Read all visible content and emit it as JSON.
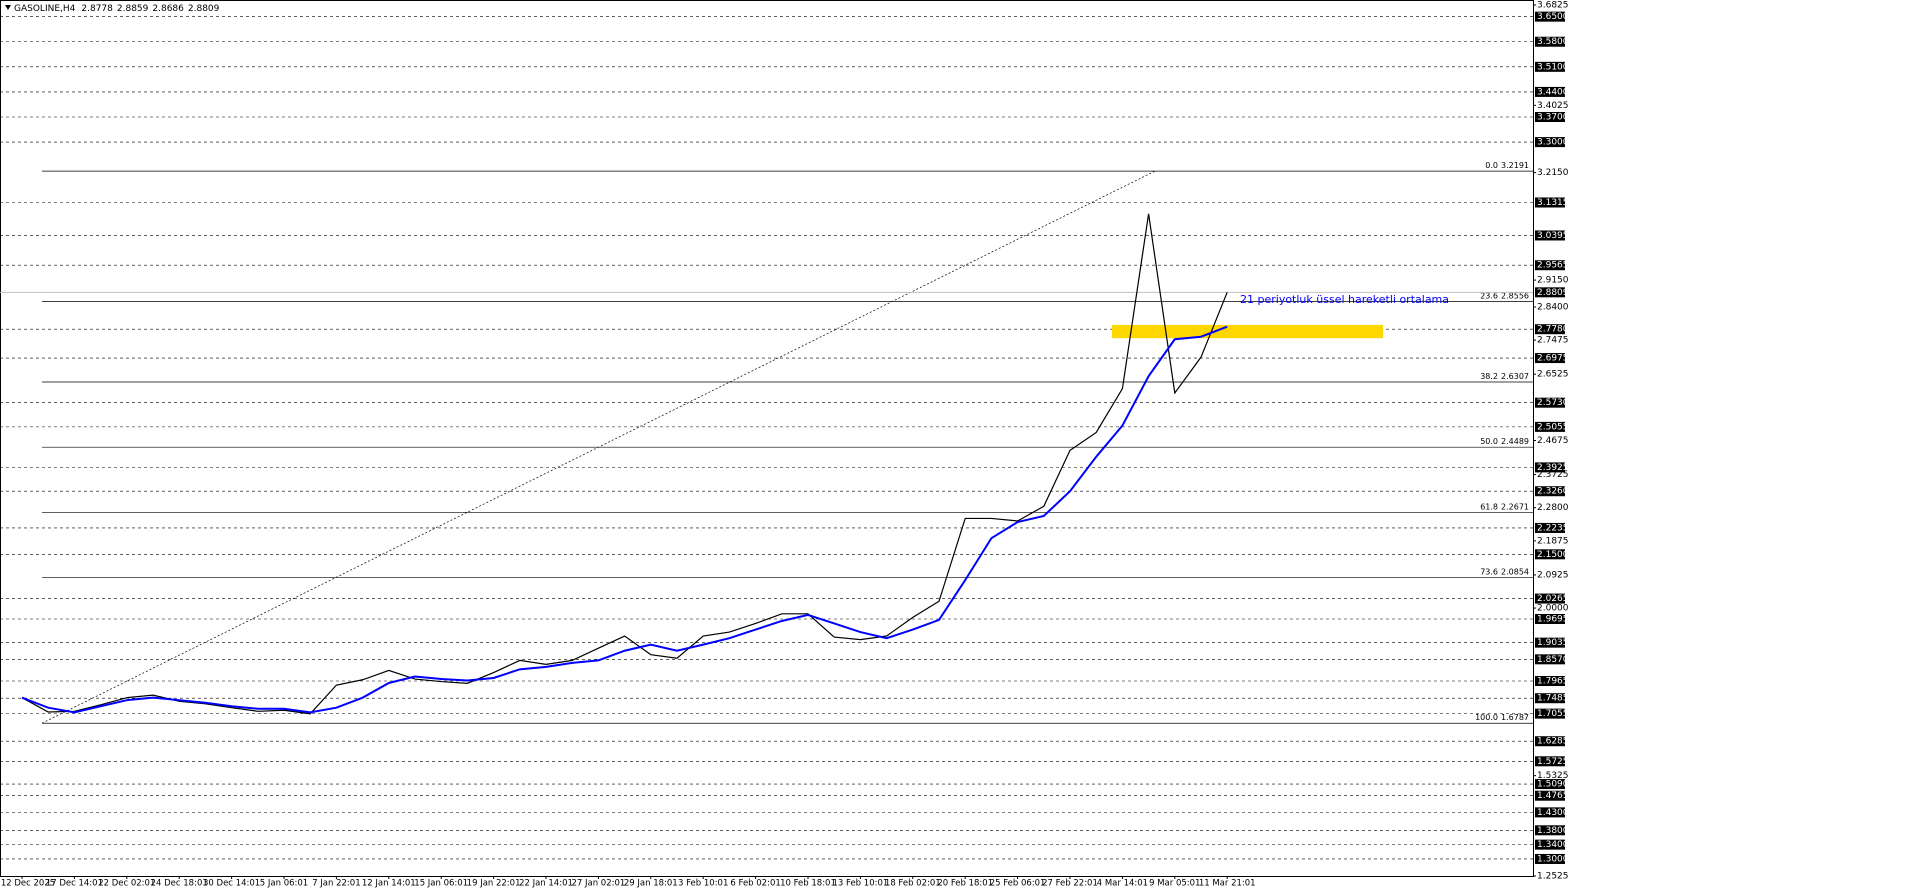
{
  "chart_data": {
    "type": "line",
    "header": {
      "symbol": "GASOLINE,H4",
      "open": 2.8778,
      "high": 2.8859,
      "low": 2.8686,
      "close": 2.8809
    },
    "categories": [
      "12 Dec 2025",
      null,
      "17 Dec 14:01",
      null,
      "22 Dec 02:01",
      null,
      "24 Dec 18:01",
      null,
      "30 Dec 14:01",
      null,
      "5 Jan 06:01",
      null,
      "7 Jan 22:01",
      null,
      "12 Jan 14:01",
      null,
      "15 Jan 06:01",
      null,
      "19 Jan 22:01",
      null,
      "22 Jan 14:01",
      null,
      "27 Jan 02:01",
      null,
      "29 Jan 18:01",
      null,
      "3 Feb 10:01",
      null,
      "6 Feb 02:01",
      null,
      "10 Feb 18:01",
      null,
      "13 Feb 10:01",
      null,
      "18 Feb 02:01",
      null,
      "20 Feb 18:01",
      null,
      "25 Feb 06:01",
      null,
      "27 Feb 22:01",
      null,
      "4 Mar 14:01",
      null,
      "9 Mar 05:01",
      null,
      "11 Mar 21:01"
    ],
    "series": [
      {
        "color": "#000000",
        "values": [
          1.75,
          1.71,
          1.712,
          1.73,
          1.75,
          1.757,
          1.74,
          1.733,
          1.722,
          1.712,
          1.715,
          1.705,
          1.785,
          1.8,
          1.826,
          1.802,
          1.795,
          1.79,
          1.82,
          1.854,
          1.843,
          1.854,
          1.888,
          1.922,
          1.87,
          1.86,
          1.922,
          1.933,
          1.957,
          1.984,
          1.984,
          1.919,
          1.912,
          1.922,
          1.974,
          2.019,
          2.25,
          2.25,
          2.243,
          2.284,
          2.44,
          2.49,
          2.612,
          3.1,
          2.6,
          2.7,
          2.8809
        ]
      },
      {
        "color": "#0000ff",
        "values": [
          1.75,
          1.722,
          1.709,
          1.726,
          1.743,
          1.75,
          1.743,
          1.736,
          1.726,
          1.719,
          1.719,
          1.709,
          1.722,
          1.75,
          1.791,
          1.809,
          1.802,
          1.798,
          1.805,
          1.829,
          1.836,
          1.847,
          1.854,
          1.881,
          1.898,
          1.881,
          1.898,
          1.916,
          1.94,
          1.964,
          1.981,
          1.957,
          1.933,
          1.916,
          1.94,
          1.967,
          2.078,
          2.195,
          2.24,
          2.257,
          2.326,
          2.422,
          2.509,
          2.647,
          2.75,
          2.757,
          2.785
        ]
      }
    ],
    "annotation": "21 periyotluk üssel hareketli ortalama",
    "ylim": [
      1.2525,
      3.6825
    ],
    "yticks": [
      {
        "value": 3.6825,
        "label": "3.6825"
      },
      {
        "value": 3.4025,
        "label": "3.4025"
      },
      {
        "value": 3.215,
        "label": "3.2150"
      },
      {
        "value": 2.915,
        "label": "2.9150"
      },
      {
        "value": 2.84,
        "label": "2.8400"
      },
      {
        "value": 2.7475,
        "label": "2.7475"
      },
      {
        "value": 2.6525,
        "label": "2.6525"
      },
      {
        "value": 2.4675,
        "label": "2.4675"
      },
      {
        "value": 2.3725,
        "label": "2.3725"
      },
      {
        "value": 2.28,
        "label": "2.2800"
      },
      {
        "value": 2.1875,
        "label": "2.1875"
      },
      {
        "value": 2.0925,
        "label": "2.0925"
      },
      {
        "value": 2,
        "label": "2.0000"
      },
      {
        "value": 1.5325,
        "label": "1.5325"
      },
      {
        "value": 1.2525,
        "label": "1.2525"
      }
    ],
    "levels": [
      {
        "value": 3.65,
        "label": "3.6500"
      },
      {
        "value": 3.58,
        "label": "3.5800"
      },
      {
        "value": 3.51,
        "label": "3.5100"
      },
      {
        "value": 3.44,
        "label": "3.4400"
      },
      {
        "value": 3.37,
        "label": "3.3700"
      },
      {
        "value": 3.3,
        "label": "3.3000"
      },
      {
        "value": 3.1315,
        "label": "3.1315"
      },
      {
        "value": 3.0395,
        "label": "3.0395"
      },
      {
        "value": 2.9565,
        "label": "2.9565"
      },
      {
        "value": 2.778,
        "label": "2.7780"
      },
      {
        "value": 2.6975,
        "label": "2.6975"
      },
      {
        "value": 2.573,
        "label": "2.5730"
      },
      {
        "value": 2.5055,
        "label": "2.5055"
      },
      {
        "value": 2.3925,
        "label": "2.3925"
      },
      {
        "value": 2.326,
        "label": "2.3260"
      },
      {
        "value": 2.2235,
        "label": "2.2235"
      },
      {
        "value": 2.15,
        "label": "2.1500"
      },
      {
        "value": 2.0265,
        "label": "2.0265"
      },
      {
        "value": 1.9695,
        "label": "1.9695"
      },
      {
        "value": 1.9035,
        "label": "1.9035"
      },
      {
        "value": 1.857,
        "label": "1.8570"
      },
      {
        "value": 1.7965,
        "label": "1.7965"
      },
      {
        "value": 1.7485,
        "label": "1.7485"
      },
      {
        "value": 1.7055,
        "label": "1.7055"
      },
      {
        "value": 1.6285,
        "label": "1.6285"
      },
      {
        "value": 1.5725,
        "label": "1.5725"
      },
      {
        "value": 1.509,
        "label": "1.5090"
      },
      {
        "value": 1.4765,
        "label": "1.4765"
      },
      {
        "value": 1.43,
        "label": "1.4300"
      },
      {
        "value": 1.38,
        "label": "1.3800"
      },
      {
        "value": 1.34,
        "label": "1.3400"
      },
      {
        "value": 1.3,
        "label": "1.3000"
      }
    ],
    "fib": [
      {
        "level": "0.0",
        "price": 3.2191
      },
      {
        "level": "23.6",
        "price": 2.8556
      },
      {
        "level": "38.2",
        "price": 2.6307
      },
      {
        "level": "50.0",
        "price": 2.4489
      },
      {
        "level": "61.8",
        "price": 2.2671
      },
      {
        "level": "73.6",
        "price": 2.0854
      },
      {
        "level": "100.0",
        "price": 1.6787
      }
    ],
    "zone": {
      "top": 2.79,
      "bottom": 2.753,
      "color": "#ffd700"
    }
  }
}
